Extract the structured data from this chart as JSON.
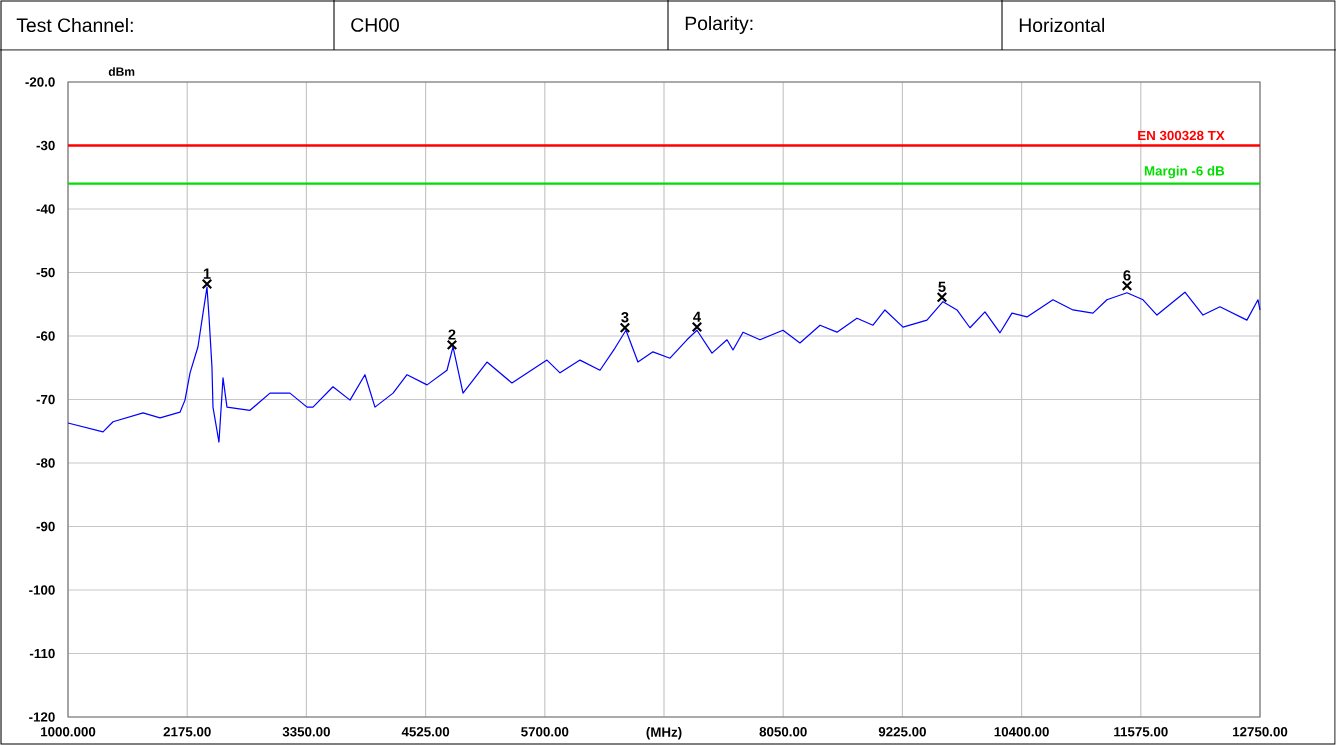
{
  "chart_data": {
    "type": "line",
    "ylabel": "dBm",
    "xlabel": "(MHz)",
    "xlim": [
      1000,
      12750
    ],
    "ylim": [
      -120,
      -20
    ],
    "xticks": [
      {
        "value": 1000,
        "label": "1000.000"
      },
      {
        "value": 2175,
        "label": "2175.00"
      },
      {
        "value": 3350,
        "label": "3350.00"
      },
      {
        "value": 4525,
        "label": "4525.00"
      },
      {
        "value": 5700,
        "label": "5700.00"
      },
      {
        "value": 6875,
        "label": null
      },
      {
        "value": 8050,
        "label": "8050.00"
      },
      {
        "value": 9225,
        "label": "9225.00"
      },
      {
        "value": 10400,
        "label": "10400.00"
      },
      {
        "value": 11575,
        "label": "11575.00"
      },
      {
        "value": 12750,
        "label": "12750.00"
      }
    ],
    "yticks": [
      {
        "value": -20,
        "label": "-20.0"
      },
      -30,
      -40,
      -50,
      -60,
      -70,
      -80,
      -90,
      -100,
      -110,
      -120
    ],
    "grid": true,
    "series": [
      {
        "color": "#0000ff",
        "marker": "none",
        "x": [
          1000,
          1345,
          1444,
          1740,
          1907,
          2104,
          2153,
          2203,
          2281,
          2331,
          2370,
          2390,
          2419,
          2429,
          2488,
          2528,
          2567,
          2794,
          2991,
          3188,
          3356,
          3415,
          3612,
          3780,
          3927,
          4026,
          4204,
          4342,
          4539,
          4736,
          4795,
          4894,
          5130,
          5376,
          5721,
          5850,
          6047,
          6244,
          6392,
          6500,
          6618,
          6766,
          6934,
          7101,
          7200,
          7348,
          7496,
          7555,
          7654,
          7821,
          8048,
          8215,
          8413,
          8580,
          8777,
          8935,
          9053,
          9231,
          9467,
          9625,
          9763,
          9891,
          10039,
          10187,
          10305,
          10453,
          10709,
          10906,
          11103,
          11241,
          11439,
          11597,
          11734,
          12010,
          12188,
          12355,
          12621,
          12730,
          12750
        ],
        "values": [
          -73.7,
          -75.1,
          -73.5,
          -72.1,
          -72.9,
          -72.0,
          -70.1,
          -65.8,
          -61.7,
          -56.4,
          -52.3,
          -57.0,
          -64.9,
          -71.2,
          -76.7,
          -66.6,
          -71.2,
          -71.7,
          -69.0,
          -69.0,
          -71.2,
          -71.2,
          -68.0,
          -70.1,
          -66.1,
          -71.2,
          -69.0,
          -66.1,
          -67.7,
          -65.4,
          -61.7,
          -69.0,
          -64.1,
          -67.4,
          -63.8,
          -65.8,
          -63.8,
          -65.4,
          -61.9,
          -59.1,
          -64.1,
          -62.5,
          -63.5,
          -60.6,
          -59.1,
          -62.7,
          -60.6,
          -62.2,
          -59.4,
          -60.6,
          -59.1,
          -61.1,
          -58.3,
          -59.4,
          -57.2,
          -58.3,
          -55.9,
          -58.6,
          -57.5,
          -54.6,
          -55.9,
          -58.7,
          -56.2,
          -59.5,
          -56.4,
          -57.0,
          -54.3,
          -55.9,
          -56.4,
          -54.3,
          -53.2,
          -54.3,
          -56.7,
          -53.1,
          -56.7,
          -55.4,
          -57.5,
          -54.3,
          -55.9
        ]
      },
      {
        "type": "scatter",
        "color": "#000000",
        "marker": "cross",
        "x": [
          2370,
          4785,
          6490,
          7200,
          9615,
          11439
        ],
        "values": [
          -51.8,
          -61.4,
          -58.7,
          -58.6,
          -53.9,
          -52.1
        ]
      }
    ],
    "ref_lines": [
      {
        "axis": "y",
        "value": -30,
        "label": "EN 300328 TX",
        "color": "#ff0000"
      },
      {
        "axis": "y",
        "value": -36,
        "label": "Margin -6 dB",
        "color": "#00dd00"
      }
    ],
    "annotations": [
      "Test Channel:",
      "CH00",
      "Polarity:",
      "Horizontal",
      {
        "text": "1",
        "x": 2370,
        "y": -51.8
      },
      {
        "text": "2",
        "x": 4785,
        "y": -61.4
      },
      {
        "text": "3",
        "x": 6490,
        "y": -58.7
      },
      {
        "text": "4",
        "x": 7200,
        "y": -58.6
      },
      {
        "text": "5",
        "x": 9615,
        "y": -53.9
      },
      {
        "text": "6",
        "x": 11439,
        "y": -52.1
      }
    ]
  }
}
